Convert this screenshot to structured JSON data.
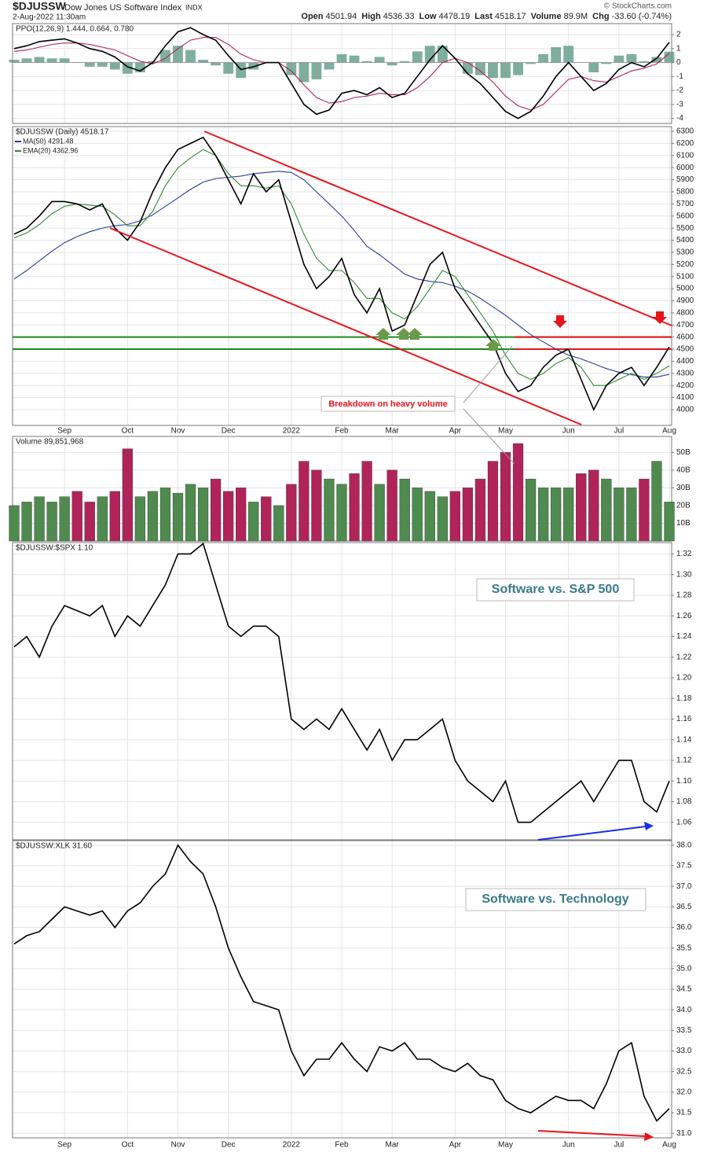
{
  "header": {
    "symbol": "$DJUSSW",
    "name": "Dow Jones US Software Index",
    "exchange": "INDX",
    "date": "2-Aug-2022 11:30am",
    "copyright": "© StockCharts.com",
    "quote": [
      {
        "label": "Open",
        "value": "4501.94"
      },
      {
        "label": "High",
        "value": "4536.33"
      },
      {
        "label": "Low",
        "value": "4478.19"
      },
      {
        "label": "Last",
        "value": "4518.17"
      },
      {
        "label": "Volume",
        "value": "89.9M"
      },
      {
        "label": "Chg",
        "value": "-33.60 (-0.74%)"
      }
    ]
  },
  "chart_data": [
    {
      "type": "line",
      "label": "PPO(12,26,9) 1.444, 0.664, 0.780",
      "ylim": [
        -4.36,
        2.79
      ],
      "yticks": [
        -4,
        -3,
        -2,
        -1,
        0,
        1,
        2
      ],
      "grid": true,
      "series": [
        {
          "name": "Histogram",
          "style": "histogram",
          "color": "#5f9a84",
          "values": [
            0.2,
            0.3,
            0.4,
            0.3,
            0.3,
            0,
            -0.3,
            -0.3,
            -0.5,
            -0.8,
            -0.7,
            0.1,
            0.9,
            1.2,
            0.9,
            0.2,
            -0.2,
            -0.8,
            -1.1,
            -0.5,
            0,
            0,
            -0.9,
            -1.4,
            -1.2,
            -0.5,
            0.6,
            0.5,
            0.1,
            0.4,
            -0.2,
            0.1,
            0.8,
            1.2,
            1.2,
            0,
            -0.8,
            -0.9,
            -1.1,
            -1.1,
            -0.9,
            -0.1,
            0.6,
            1.1,
            1.2,
            0,
            -0.7,
            -0.1,
            0.5,
            0.6,
            0.1,
            0.4,
            0.78
          ]
        },
        {
          "name": "Signal",
          "color": "#b0245a",
          "values": [
            0.8,
            0.9,
            1.1,
            1.3,
            1.4,
            1.4,
            1.3,
            1.1,
            0.9,
            0.5,
            0.1,
            -0.1,
            0.3,
            1.0,
            1.6,
            1.8,
            1.8,
            1.3,
            0.6,
            0.2,
            0,
            0,
            -0.6,
            -1.6,
            -2.5,
            -2.9,
            -2.8,
            -2.5,
            -2.4,
            -2.2,
            -2.3,
            -2.3,
            -1.8,
            -1.0,
            0,
            0.3,
            0,
            -0.6,
            -1.4,
            -2.4,
            -3.1,
            -3.4,
            -3.0,
            -2.1,
            -1.2,
            -1.0,
            -1.3,
            -1.4,
            -1.0,
            -0.6,
            -0.4,
            -0.1,
            0.664
          ]
        },
        {
          "name": "PPO",
          "color": "#000000",
          "values": [
            1.0,
            1.2,
            1.5,
            1.6,
            1.7,
            1.4,
            1.0,
            0.8,
            0.4,
            -0.3,
            -0.6,
            0,
            1.2,
            2.2,
            2.5,
            2.0,
            1.6,
            0.5,
            -0.5,
            -0.3,
            0,
            0,
            -1.5,
            -3.0,
            -3.7,
            -3.4,
            -2.2,
            -2.0,
            -2.3,
            -1.8,
            -2.5,
            -2.2,
            -1.0,
            0.2,
            1.2,
            0.3,
            -0.8,
            -1.5,
            -2.5,
            -3.5,
            -4.0,
            -3.5,
            -2.4,
            -1.0,
            0,
            -1.0,
            -2.0,
            -1.5,
            -0.5,
            0,
            -0.3,
            0.3,
            1.444
          ]
        }
      ]
    },
    {
      "type": "line",
      "ylim": [
        3870,
        6339
      ],
      "yticks": [
        4000,
        4100,
        4200,
        4300,
        4400,
        4500,
        4600,
        4700,
        4800,
        4900,
        5000,
        5100,
        5200,
        5300,
        5400,
        5500,
        5600,
        5700,
        5800,
        5900,
        6000,
        6100,
        6200,
        6300
      ],
      "grid": true,
      "categories": [
        null,
        null,
        null,
        null,
        "Sep",
        null,
        null,
        null,
        null,
        "Oct",
        null,
        null,
        null,
        "Nov",
        null,
        null,
        null,
        "Dec",
        null,
        null,
        null,
        null,
        "2022",
        null,
        null,
        null,
        "Feb",
        null,
        null,
        null,
        "Mar",
        null,
        null,
        null,
        null,
        "Apr",
        null,
        null,
        null,
        "May",
        null,
        null,
        null,
        null,
        "Jun",
        null,
        null,
        null,
        "Jul",
        null,
        null,
        null,
        "Aug"
      ],
      "levels": [
        4600,
        4500
      ],
      "level_color": "#1a8a1a",
      "annotation": "Breakdown on heavy volume",
      "series": [
        {
          "name": "MA(50) 4291.48",
          "color": "#2b3a9a",
          "values": [
            5080,
            5150,
            5230,
            5310,
            5380,
            5430,
            5470,
            5500,
            5520,
            5530,
            5560,
            5610,
            5680,
            5750,
            5820,
            5880,
            5910,
            5920,
            5930,
            5950,
            5960,
            5970,
            5960,
            5900,
            5800,
            5700,
            5600,
            5480,
            5350,
            5280,
            5200,
            5120,
            5080,
            5060,
            5050,
            5020,
            4980,
            4920,
            4850,
            4780,
            4700,
            4620,
            4560,
            4500,
            4450,
            4420,
            4380,
            4340,
            4310,
            4290,
            4270,
            4270,
            4291.48
          ]
        },
        {
          "name": "EMA(20) 4362.96",
          "color": "#2e8b2e",
          "values": [
            5420,
            5460,
            5530,
            5620,
            5680,
            5700,
            5690,
            5680,
            5610,
            5520,
            5520,
            5640,
            5850,
            6000,
            6080,
            6150,
            6100,
            5950,
            5850,
            5850,
            5830,
            5850,
            5700,
            5450,
            5250,
            5150,
            5150,
            5050,
            4920,
            4920,
            4800,
            4750,
            4850,
            5000,
            5150,
            5100,
            4950,
            4800,
            4650,
            4450,
            4300,
            4250,
            4300,
            4380,
            4430,
            4350,
            4200,
            4200,
            4250,
            4300,
            4250,
            4300,
            4362.96
          ]
        },
        {
          "name": "$DJUSSW (Daily) 4518.17",
          "color": "#000000",
          "values": [
            5450,
            5500,
            5600,
            5720,
            5720,
            5700,
            5650,
            5700,
            5500,
            5400,
            5550,
            5800,
            6000,
            6150,
            6200,
            6250,
            6100,
            5900,
            5700,
            5950,
            5800,
            5900,
            5550,
            5200,
            5000,
            5100,
            5250,
            4950,
            4800,
            5000,
            4650,
            4700,
            4950,
            5200,
            5300,
            5000,
            4850,
            4700,
            4550,
            4300,
            4150,
            4200,
            4350,
            4450,
            4500,
            4250,
            4000,
            4200,
            4300,
            4350,
            4200,
            4350,
            4518.17
          ]
        }
      ]
    },
    {
      "type": "bar",
      "label": "Volume 89,851,968",
      "ylim": [
        0,
        59
      ],
      "yticks": [
        {
          "value": 10,
          "label": "10B"
        },
        {
          "value": 20,
          "label": "20B"
        },
        {
          "value": 30,
          "label": "30B"
        },
        {
          "value": 40,
          "label": "40B"
        },
        {
          "value": 50,
          "label": "50B"
        }
      ],
      "grid": true,
      "colors": {
        "up": "#4f8a4f",
        "down": "#b0245a"
      },
      "values": [
        20,
        22,
        25,
        22,
        25,
        28,
        22,
        25,
        28,
        52,
        25,
        28,
        30,
        27,
        32,
        30,
        35,
        28,
        30,
        22,
        25,
        20,
        32,
        45,
        40,
        35,
        32,
        38,
        45,
        32,
        40,
        35,
        30,
        28,
        25,
        28,
        30,
        35,
        45,
        50,
        55,
        35,
        30,
        30,
        30,
        38,
        40,
        35,
        30,
        30,
        35,
        45,
        22
      ]
    },
    {
      "type": "line",
      "label": "$DJUSSW:$SPX 1.10",
      "ylim": [
        1.043,
        1.331
      ],
      "annotation": "Software vs. S&P 500",
      "grid": true,
      "yticks": [
        1.06,
        1.08,
        {
          "value": 1.1,
          "label": "1.10"
        },
        1.12,
        1.14,
        1.16,
        1.18,
        {
          "value": 1.2,
          "label": "1.20"
        },
        1.22,
        1.24,
        1.26,
        1.28,
        {
          "value": 1.3,
          "label": "1.30"
        },
        1.32
      ],
      "series": [
        {
          "name": "$DJUSSW:$SPX",
          "color": "#000000",
          "values": [
            1.23,
            1.24,
            1.22,
            1.25,
            1.27,
            1.265,
            1.26,
            1.27,
            1.24,
            1.26,
            1.25,
            1.27,
            1.29,
            1.32,
            1.32,
            1.33,
            1.29,
            1.25,
            1.24,
            1.25,
            1.25,
            1.24,
            1.16,
            1.15,
            1.16,
            1.15,
            1.17,
            1.15,
            1.13,
            1.15,
            1.12,
            1.14,
            1.14,
            1.15,
            1.16,
            1.12,
            1.1,
            1.09,
            1.08,
            1.1,
            1.06,
            1.06,
            1.07,
            1.08,
            1.09,
            1.1,
            1.08,
            1.1,
            1.12,
            1.12,
            1.08,
            1.07,
            1.1
          ]
        }
      ]
    },
    {
      "type": "line",
      "label": "$DJUSSW:XLK 31.60",
      "ylim": [
        30.89,
        38.11
      ],
      "annotation": "Software vs. Technology",
      "grid": true,
      "yticks": [
        {
          "value": 31,
          "label": "31.0"
        },
        31.5,
        {
          "value": 32,
          "label": "32.0"
        },
        32.5,
        {
          "value": 33,
          "label": "33.0"
        },
        33.5,
        {
          "value": 34,
          "label": "34.0"
        },
        34.5,
        {
          "value": 35,
          "label": "35.0"
        },
        35.5,
        {
          "value": 36,
          "label": "36.0"
        },
        36.5,
        {
          "value": 37,
          "label": "37.0"
        },
        37.5,
        {
          "value": 38,
          "label": "38.0"
        }
      ],
      "categories": [
        null,
        null,
        null,
        null,
        "Sep",
        null,
        null,
        null,
        null,
        "Oct",
        null,
        null,
        null,
        "Nov",
        null,
        null,
        null,
        "Dec",
        null,
        null,
        null,
        null,
        "2022",
        null,
        null,
        null,
        "Feb",
        null,
        null,
        null,
        "Mar",
        null,
        null,
        null,
        null,
        "Apr",
        null,
        null,
        null,
        "May",
        null,
        null,
        null,
        null,
        "Jun",
        null,
        null,
        null,
        "Jul",
        null,
        null,
        null,
        "Aug"
      ],
      "series": [
        {
          "name": "$DJUSSW:XLK",
          "color": "#000000",
          "values": [
            35.6,
            35.8,
            35.9,
            36.2,
            36.5,
            36.4,
            36.3,
            36.4,
            36.0,
            36.4,
            36.6,
            37.0,
            37.3,
            38.0,
            37.6,
            37.3,
            36.5,
            35.5,
            34.8,
            34.2,
            34.1,
            34.0,
            33.0,
            32.4,
            32.8,
            32.8,
            33.2,
            32.8,
            32.5,
            33.1,
            33.0,
            33.2,
            32.8,
            32.8,
            32.6,
            32.5,
            32.7,
            32.4,
            32.3,
            31.8,
            31.6,
            31.5,
            31.7,
            31.9,
            31.8,
            31.8,
            31.6,
            32.2,
            33.0,
            33.2,
            31.9,
            31.3,
            31.6
          ]
        }
      ]
    }
  ]
}
